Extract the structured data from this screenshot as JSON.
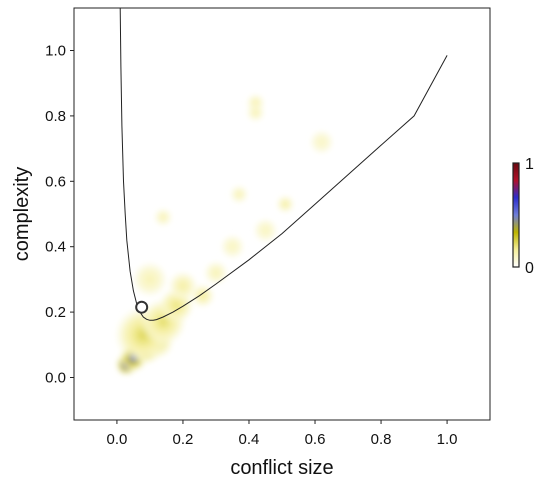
{
  "chart_data": {
    "type": "heatmap",
    "title": "",
    "xlabel": "conflict size",
    "ylabel": "complexity",
    "xlim": [
      -0.13,
      1.13
    ],
    "ylim": [
      -0.13,
      1.13
    ],
    "xticks": [
      0.0,
      0.2,
      0.4,
      0.6,
      0.8,
      1.0
    ],
    "yticks": [
      0.0,
      0.2,
      0.4,
      0.6,
      0.8,
      1.0
    ],
    "xtick_labels": [
      "0.0",
      "0.2",
      "0.4",
      "0.6",
      "0.8",
      "1.0"
    ],
    "ytick_labels": [
      "0.0",
      "0.2",
      "0.4",
      "0.6",
      "0.8",
      "1.0"
    ],
    "grid": false,
    "colorbar": {
      "min_label": "0",
      "max_label": "1",
      "colors": [
        "#ffffff",
        "#f4ee9a",
        "#bdb500",
        "#6f7ed8",
        "#2c2ccc",
        "#b0102a",
        "#6a0a10"
      ]
    },
    "density_blobs": [
      {
        "x": 0.02,
        "y": 0.025,
        "intensity": 1.0,
        "spread": 0.008
      },
      {
        "x": 0.03,
        "y": 0.04,
        "intensity": 0.8,
        "spread": 0.02
      },
      {
        "x": 0.05,
        "y": 0.06,
        "intensity": 0.6,
        "spread": 0.025
      },
      {
        "x": 0.09,
        "y": 0.085,
        "intensity": 0.45,
        "spread": 0.025
      },
      {
        "x": 0.12,
        "y": 0.11,
        "intensity": 0.3,
        "spread": 0.03
      },
      {
        "x": 0.08,
        "y": 0.13,
        "intensity": 0.2,
        "spread": 0.05
      },
      {
        "x": 0.14,
        "y": 0.17,
        "intensity": 0.18,
        "spread": 0.04
      },
      {
        "x": 0.18,
        "y": 0.22,
        "intensity": 0.16,
        "spread": 0.03
      },
      {
        "x": 0.2,
        "y": 0.28,
        "intensity": 0.12,
        "spread": 0.025
      },
      {
        "x": 0.26,
        "y": 0.25,
        "intensity": 0.14,
        "spread": 0.02
      },
      {
        "x": 0.1,
        "y": 0.3,
        "intensity": 0.08,
        "spread": 0.03
      },
      {
        "x": 0.14,
        "y": 0.49,
        "intensity": 0.08,
        "spread": 0.015
      },
      {
        "x": 0.3,
        "y": 0.32,
        "intensity": 0.08,
        "spread": 0.02
      },
      {
        "x": 0.37,
        "y": 0.56,
        "intensity": 0.08,
        "spread": 0.015
      },
      {
        "x": 0.42,
        "y": 0.84,
        "intensity": 0.09,
        "spread": 0.015
      },
      {
        "x": 0.42,
        "y": 0.81,
        "intensity": 0.08,
        "spread": 0.015
      },
      {
        "x": 0.51,
        "y": 0.53,
        "intensity": 0.12,
        "spread": 0.015
      },
      {
        "x": 0.35,
        "y": 0.4,
        "intensity": 0.06,
        "spread": 0.02
      },
      {
        "x": 0.45,
        "y": 0.45,
        "intensity": 0.06,
        "spread": 0.02
      },
      {
        "x": 0.62,
        "y": 0.72,
        "intensity": 0.05,
        "spread": 0.02
      }
    ],
    "boundary_curve": {
      "x": [
        0.01,
        0.012,
        0.015,
        0.02,
        0.025,
        0.03,
        0.04,
        0.05,
        0.06,
        0.07,
        0.08,
        0.09,
        0.1,
        0.11,
        0.12,
        0.14,
        0.17,
        0.2,
        0.25,
        0.3,
        0.4,
        0.5,
        0.6,
        0.7,
        0.8,
        0.9,
        1.0
      ],
      "y": [
        1.13,
        0.95,
        0.77,
        0.6,
        0.5,
        0.42,
        0.325,
        0.265,
        0.225,
        0.2,
        0.185,
        0.178,
        0.175,
        0.175,
        0.177,
        0.185,
        0.2,
        0.218,
        0.25,
        0.286,
        0.36,
        0.44,
        0.53,
        0.62,
        0.71,
        0.8,
        0.985
      ]
    },
    "highlight_point": {
      "x": 0.075,
      "y": 0.215
    }
  }
}
